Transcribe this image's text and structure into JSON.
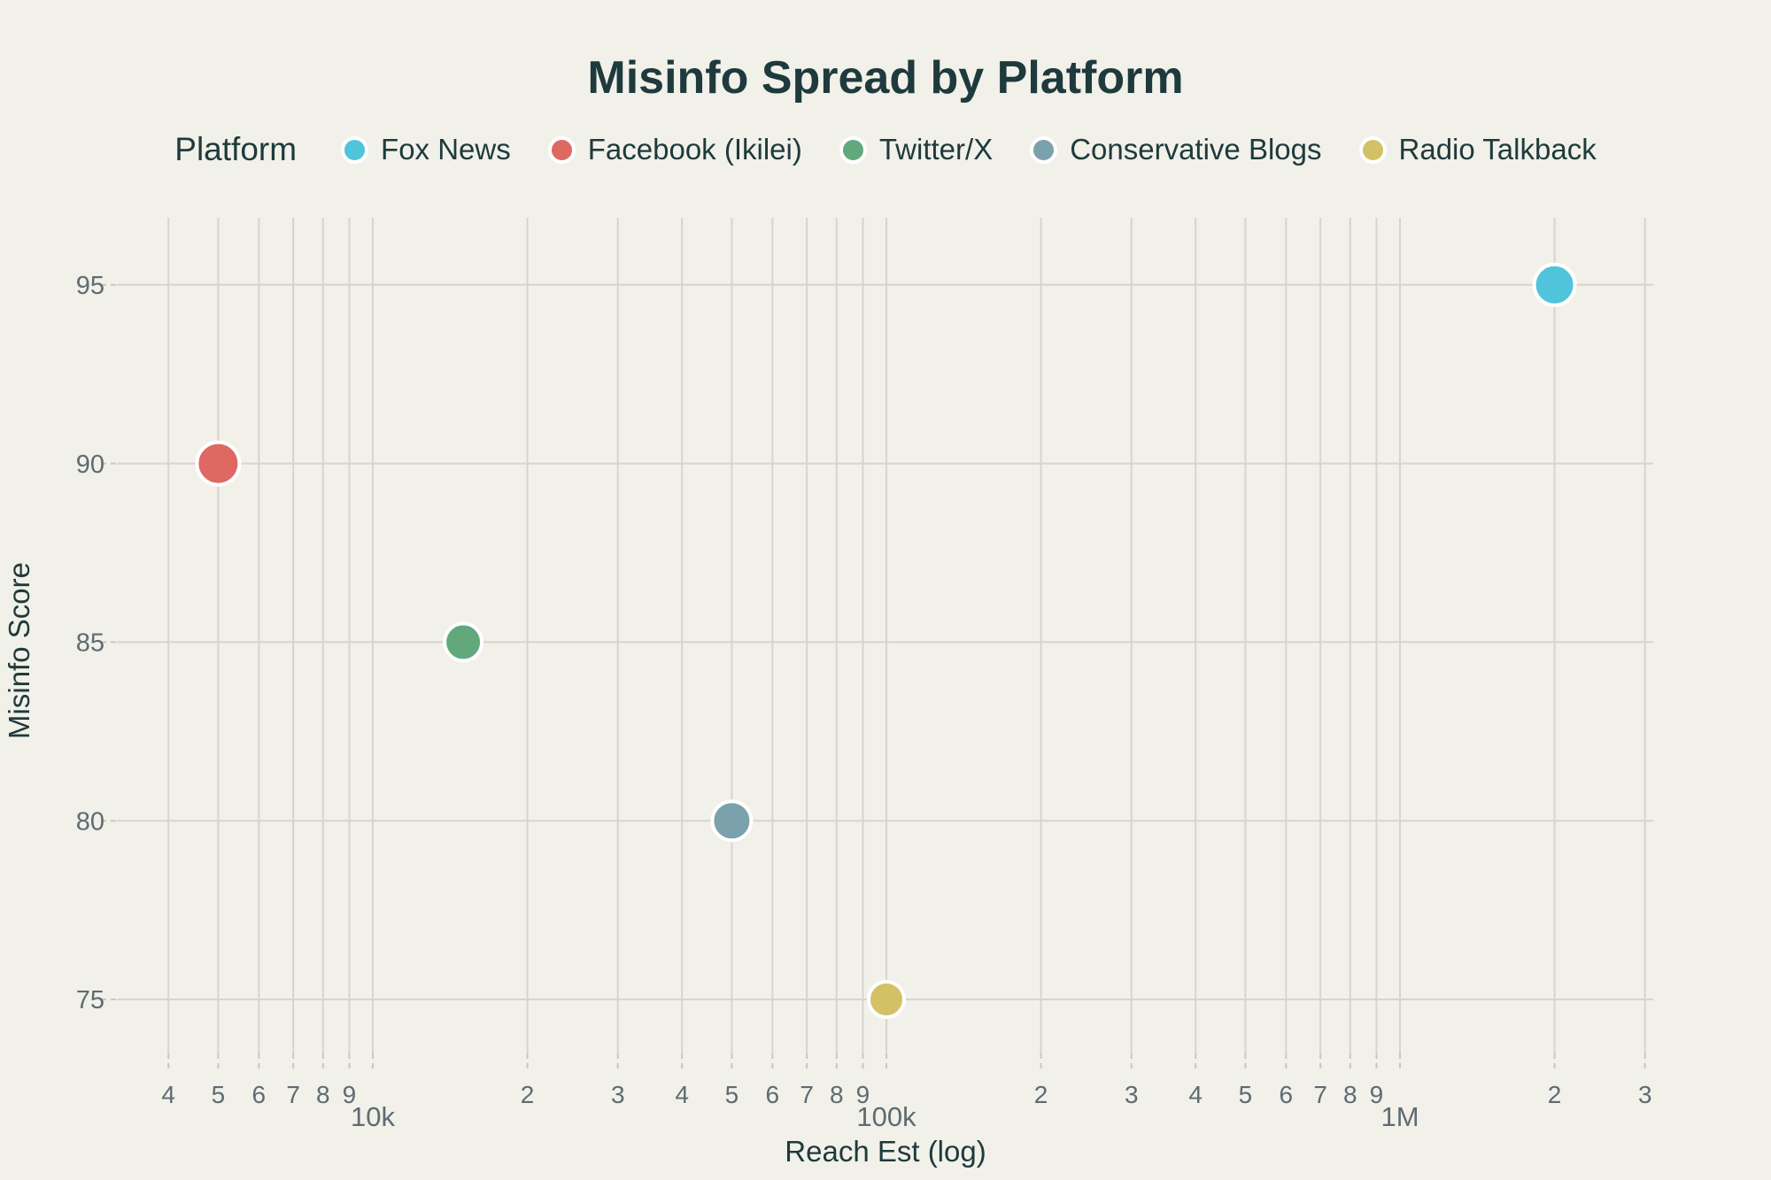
{
  "title": "Misinfo Spread by Platform",
  "legend": {
    "title": "Platform",
    "items": [
      {
        "label": "Fox News",
        "color": "#4fc4da"
      },
      {
        "label": "Facebook (Ikilei)",
        "color": "#de6862"
      },
      {
        "label": "Twitter/X",
        "color": "#61a87d"
      },
      {
        "label": "Conservative Blogs",
        "color": "#7aa1ac"
      },
      {
        "label": "Radio Talkback",
        "color": "#d4c166"
      }
    ]
  },
  "axes": {
    "x_title": "Reach Est (log)",
    "y_title": "Misinfo Score"
  },
  "chart_data": {
    "type": "scatter",
    "title": "Misinfo Spread by Platform",
    "xlabel": "Reach Est (log)",
    "ylabel": "Misinfo Score",
    "x_scale": "log",
    "x_range": [
      3300,
      3300000
    ],
    "y_range": [
      73.2,
      96.9
    ],
    "grid": true,
    "legend_position": "top",
    "points": [
      {
        "name": "Fox News",
        "x": 2000000,
        "y": 95,
        "color": "#4fc4da",
        "radius_px": 23
      },
      {
        "name": "Facebook (Ikilei)",
        "x": 5000,
        "y": 90,
        "color": "#de6862",
        "radius_px": 24
      },
      {
        "name": "Twitter/X",
        "x": 15000,
        "y": 85,
        "color": "#61a87d",
        "radius_px": 21
      },
      {
        "name": "Conservative Blogs",
        "x": 50000,
        "y": 80,
        "color": "#7aa1ac",
        "radius_px": 22
      },
      {
        "name": "Radio Talkback",
        "x": 100000,
        "y": 75,
        "color": "#d4c166",
        "radius_px": 20
      }
    ],
    "x_ticks": {
      "major": [
        {
          "value": 10000,
          "label": "10k"
        },
        {
          "value": 100000,
          "label": "100k"
        },
        {
          "value": 1000000,
          "label": "1M"
        }
      ],
      "minor": [
        {
          "value": 4000,
          "label": "4"
        },
        {
          "value": 5000,
          "label": "5"
        },
        {
          "value": 6000,
          "label": "6"
        },
        {
          "value": 7000,
          "label": "7"
        },
        {
          "value": 8000,
          "label": "8"
        },
        {
          "value": 9000,
          "label": "9"
        },
        {
          "value": 20000,
          "label": "2"
        },
        {
          "value": 30000,
          "label": "3"
        },
        {
          "value": 40000,
          "label": "4"
        },
        {
          "value": 50000,
          "label": "5"
        },
        {
          "value": 60000,
          "label": "6"
        },
        {
          "value": 70000,
          "label": "7"
        },
        {
          "value": 80000,
          "label": "8"
        },
        {
          "value": 90000,
          "label": "9"
        },
        {
          "value": 200000,
          "label": "2"
        },
        {
          "value": 300000,
          "label": "3"
        },
        {
          "value": 400000,
          "label": "4"
        },
        {
          "value": 500000,
          "label": "5"
        },
        {
          "value": 600000,
          "label": "6"
        },
        {
          "value": 700000,
          "label": "7"
        },
        {
          "value": 800000,
          "label": "8"
        },
        {
          "value": 900000,
          "label": "9"
        },
        {
          "value": 2000000,
          "label": "2"
        },
        {
          "value": 3000000,
          "label": "3"
        }
      ]
    },
    "y_ticks": [
      {
        "value": 75,
        "label": "75"
      },
      {
        "value": 80,
        "label": "80"
      },
      {
        "value": 85,
        "label": "85"
      },
      {
        "value": 90,
        "label": "90"
      },
      {
        "value": 95,
        "label": "95"
      }
    ]
  },
  "colors": {
    "background": "#f1f0e9",
    "text_dark": "#1e3a3c",
    "tick_text": "#5e6b72",
    "gridline": "#d7d4ce",
    "tick_stub": "#c9c6c0",
    "point_stroke": "#ffffff"
  }
}
